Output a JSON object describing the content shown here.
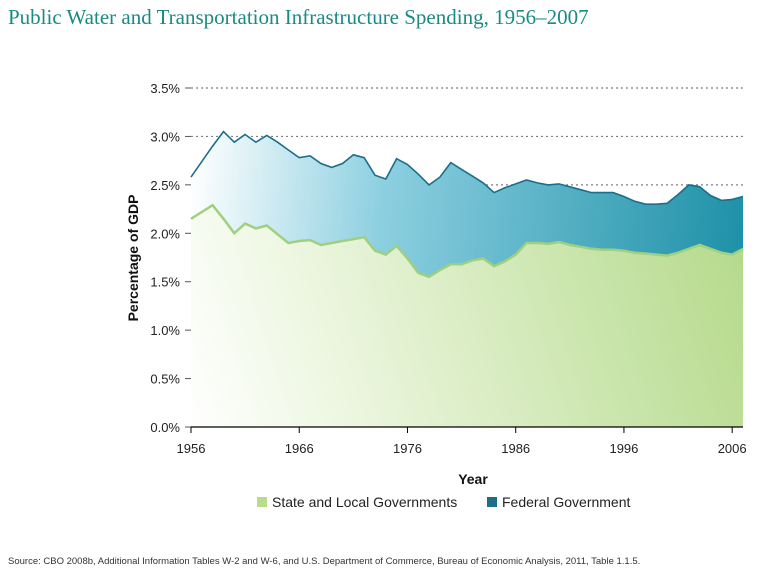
{
  "title": "Public Water and Transportation Infrastructure Spending, 1956–2007",
  "source": "Source: CBO 2008b, Additional Information Tables W-2 and W-6, and U.S. Department of Commerce, Bureau of Economic Analysis, 2011, Table 1.1.5.",
  "colors": {
    "title": "#1a8a83",
    "state_local_line": "#9fd080",
    "state_local_fill": "#b8db8c",
    "federal_line": "#1c6e8a",
    "federal_fill": "#2592a8",
    "grid": "#7f7f7f"
  },
  "chart_data": {
    "type": "area",
    "stacked": true,
    "xlabel": "Year",
    "ylabel": "Percentage of GDP",
    "x_ticks": [
      1956,
      1966,
      1976,
      1986,
      1996,
      2006
    ],
    "x_tick_labels": [
      "1956",
      "1966",
      "1976",
      "1986",
      "1996",
      "2006"
    ],
    "y_ticks": [
      0,
      0.5,
      1.0,
      1.5,
      2.0,
      2.5,
      3.0,
      3.5
    ],
    "y_tick_labels": [
      "0.0%",
      "0.5%",
      "1.0%",
      "1.5%",
      "2.0%",
      "2.5%",
      "3.0%",
      "3.5%"
    ],
    "xlim": [
      1956,
      2007
    ],
    "ylim": [
      0,
      3.5
    ],
    "grid": "horizontal dotted",
    "legend_position": "bottom",
    "x": [
      1956,
      1957,
      1958,
      1959,
      1960,
      1961,
      1962,
      1963,
      1964,
      1965,
      1966,
      1967,
      1968,
      1969,
      1970,
      1971,
      1972,
      1973,
      1974,
      1975,
      1976,
      1977,
      1978,
      1979,
      1980,
      1981,
      1982,
      1983,
      1984,
      1985,
      1986,
      1987,
      1988,
      1989,
      1990,
      1991,
      1992,
      1993,
      1994,
      1995,
      1996,
      1997,
      1998,
      1999,
      2000,
      2001,
      2002,
      2003,
      2004,
      2005,
      2006,
      2007
    ],
    "series": [
      {
        "name": "State and Local Governments",
        "values": [
          2.15,
          2.22,
          2.29,
          2.15,
          2.0,
          2.1,
          2.05,
          2.08,
          1.99,
          1.9,
          1.92,
          1.93,
          1.88,
          1.9,
          1.92,
          1.94,
          1.96,
          1.82,
          1.78,
          1.87,
          1.74,
          1.59,
          1.55,
          1.62,
          1.68,
          1.68,
          1.72,
          1.74,
          1.66,
          1.71,
          1.78,
          1.9,
          1.9,
          1.89,
          1.91,
          1.88,
          1.86,
          1.84,
          1.83,
          1.83,
          1.82,
          1.8,
          1.79,
          1.78,
          1.77,
          1.8,
          1.84,
          1.88,
          1.84,
          1.8,
          1.78,
          1.84
        ]
      },
      {
        "name": "Federal Government",
        "total_values": [
          2.58,
          2.74,
          2.9,
          3.05,
          2.94,
          3.02,
          2.94,
          3.01,
          2.94,
          2.86,
          2.78,
          2.8,
          2.72,
          2.68,
          2.72,
          2.81,
          2.78,
          2.6,
          2.56,
          2.77,
          2.71,
          2.61,
          2.5,
          2.58,
          2.73,
          2.66,
          2.59,
          2.52,
          2.42,
          2.47,
          2.51,
          2.55,
          2.52,
          2.5,
          2.51,
          2.48,
          2.45,
          2.42,
          2.42,
          2.42,
          2.38,
          2.33,
          2.3,
          2.3,
          2.31,
          2.4,
          2.5,
          2.48,
          2.39,
          2.34,
          2.35,
          2.38
        ]
      }
    ]
  }
}
